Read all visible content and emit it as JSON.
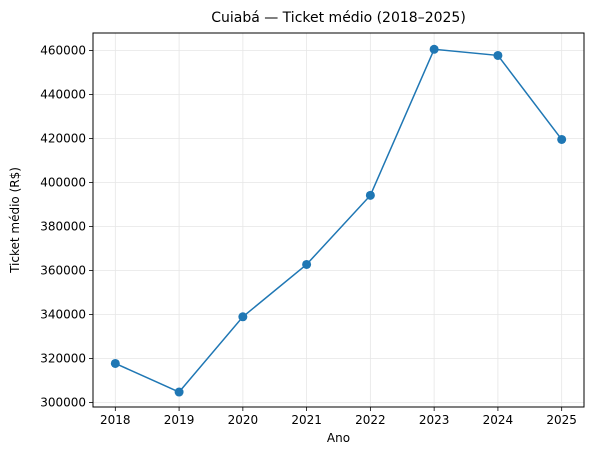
{
  "chart_data": {
    "type": "line",
    "title": "Cuiabá — Ticket médio (2018–2025)",
    "xlabel": "Ano",
    "ylabel": "Ticket médio (R$)",
    "x": [
      2018,
      2019,
      2020,
      2021,
      2022,
      2023,
      2024,
      2025
    ],
    "series": [
      {
        "values": [
          317800,
          304800,
          339000,
          362800,
          394200,
          460600,
          457800,
          419600
        ]
      }
    ],
    "yticks": [
      300000,
      320000,
      340000,
      360000,
      380000,
      400000,
      420000,
      440000,
      460000
    ],
    "ylim": [
      298000,
      468000
    ],
    "xlim": [
      2017.65,
      2025.35
    ],
    "grid": true,
    "colors": {
      "line": "#1f77b4",
      "grid": "#e6e6e6",
      "axis": "#000000"
    }
  }
}
